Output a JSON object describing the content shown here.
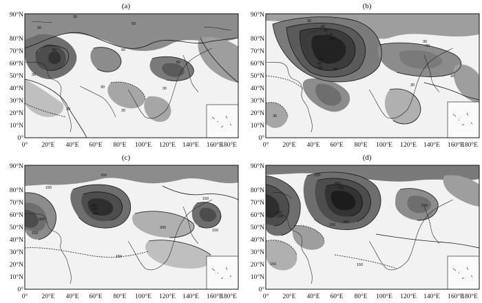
{
  "figure": {
    "panels": [
      {
        "id": "a",
        "label": "(a)",
        "contour_labels": [
          "30",
          "60",
          "30",
          "60",
          "30",
          "30",
          "60",
          "30",
          "60",
          "30",
          "30"
        ]
      },
      {
        "id": "b",
        "label": "(b)",
        "contour_labels": [
          "30",
          "60",
          "90",
          "120",
          "150",
          "120",
          "90",
          "60",
          "30",
          "30",
          "60",
          "30",
          "30",
          "30"
        ]
      },
      {
        "id": "c",
        "label": "(c)",
        "contour_labels": [
          "150",
          "300",
          "150",
          "150",
          "450",
          "300",
          "150",
          "150",
          "300",
          "150",
          "150"
        ]
      },
      {
        "id": "d",
        "label": "(d)",
        "contour_labels": [
          "150",
          "150",
          "300",
          "450",
          "300",
          "150",
          "300",
          "150",
          "150",
          "150"
        ]
      }
    ],
    "x_ticks": [
      "0°",
      "20°E",
      "40°E",
      "60°E",
      "80°E",
      "100°E",
      "120°E",
      "140°E",
      "160°E",
      "180°E"
    ],
    "y_ticks": [
      "0°",
      "10°N",
      "20°N",
      "30°N",
      "40°N",
      "50°N",
      "60°N",
      "70°N",
      "80°N",
      "90°N"
    ]
  }
}
